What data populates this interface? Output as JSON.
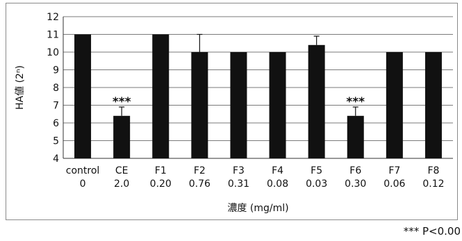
{
  "chart_data": {
    "type": "bar",
    "categories": [
      {
        "name": "control",
        "conc": "0"
      },
      {
        "name": "CE",
        "conc": "2.0"
      },
      {
        "name": "F1",
        "conc": "0.20"
      },
      {
        "name": "F2",
        "conc": "0.76"
      },
      {
        "name": "F3",
        "conc": "0.31"
      },
      {
        "name": "F4",
        "conc": "0.08"
      },
      {
        "name": "F5",
        "conc": "0.03"
      },
      {
        "name": "F6",
        "conc": "0.30"
      },
      {
        "name": "F7",
        "conc": "0.06"
      },
      {
        "name": "F8",
        "conc": "0.12"
      }
    ],
    "values": [
      11,
      6.4,
      11,
      10,
      10,
      10,
      10.4,
      6.4,
      10,
      10
    ],
    "errors": [
      0,
      0.5,
      0,
      1,
      0,
      0,
      0.5,
      0.5,
      0,
      0
    ],
    "annotations": [
      "",
      "***",
      "",
      "",
      "",
      "",
      "",
      "***",
      "",
      ""
    ],
    "ylabel": "HA値 (2ⁿ)",
    "xlabel": "濃度 (mg/ml)",
    "ylim": [
      4,
      12
    ],
    "yticks": [
      "4",
      "5",
      "6",
      "7",
      "8",
      "9",
      "10",
      "11",
      "12"
    ],
    "grid": true,
    "bar_color": "#111111"
  },
  "footnote": "*** P<0.00"
}
